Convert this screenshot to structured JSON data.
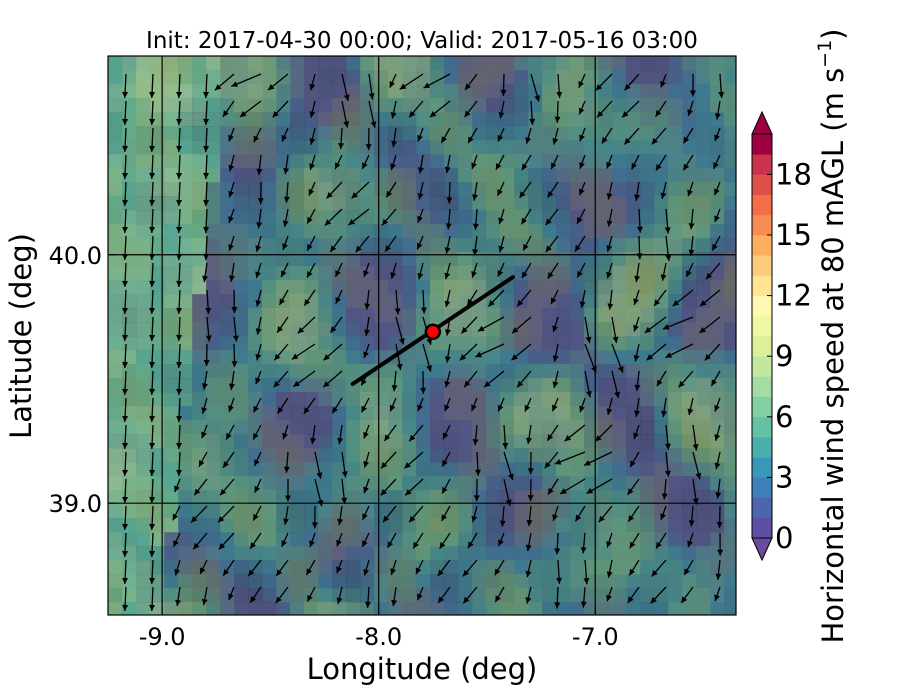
{
  "chart_data": {
    "type": "heatmap",
    "title": "Init: 2017-04-30 00:00; Valid: 2017-05-16 03:00",
    "xlabel": "Longitude (deg)",
    "ylabel": "Latitude (deg)",
    "xlim": [
      -9.25,
      -6.35
    ],
    "ylim": [
      38.55,
      40.8
    ],
    "x_ticks": [
      -9.0,
      -8.0,
      -7.0
    ],
    "x_tick_labels": [
      "-9.0",
      "-8.0",
      "-7.0"
    ],
    "y_ticks": [
      39.0,
      40.0
    ],
    "y_tick_labels": [
      "39.0",
      "40.0"
    ],
    "gridlines": {
      "meridians": [
        -9.0,
        -8.0,
        -7.0
      ],
      "parallels": [
        39.0,
        40.0
      ]
    },
    "colorbar": {
      "label_main": "Horizontal wind speed at 80 mAGL (m s",
      "label_exp": "−1",
      "label_close": ")",
      "min": 0,
      "max": 20,
      "levels": [
        0,
        1,
        2,
        3,
        4,
        5,
        6,
        7,
        8,
        9,
        10,
        11,
        12,
        13,
        14,
        15,
        16,
        17,
        18,
        19,
        20
      ],
      "ticks": [
        0,
        3,
        6,
        9,
        12,
        15,
        18
      ],
      "tick_labels": [
        "0",
        "3",
        "6",
        "9",
        "12",
        "15",
        "18"
      ],
      "colors": [
        "#5e4fa2",
        "#4d65ae",
        "#3f7fb9",
        "#3a97b8",
        "#4aaeac",
        "#62c2a3",
        "#83cfa4",
        "#a4dca4",
        "#c2e79e",
        "#dbf099",
        "#eef8a2",
        "#fff8b3",
        "#fee593",
        "#fdcc7a",
        "#fdae61",
        "#f88d53",
        "#f26d4a",
        "#e0504a",
        "#c9334b",
        "#9e0142"
      ],
      "extend": "both"
    },
    "transect": {
      "start": {
        "lon": -8.12,
        "lat": 39.48
      },
      "end": {
        "lon": -7.38,
        "lat": 39.91
      }
    },
    "site_marker": {
      "lon": -7.75,
      "lat": 39.69,
      "color": "#ff0000"
    },
    "wind_field_description": "Wind vectors pointing mainly south to southwest, speeds roughly 2–7 m s−1, stronger near the western coast"
  }
}
